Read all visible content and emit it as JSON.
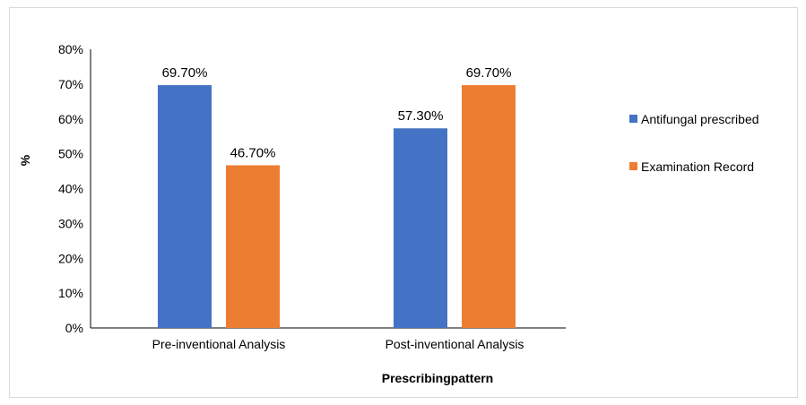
{
  "chart_data": {
    "type": "bar",
    "title": "",
    "categories": [
      "Pre-inventional Analysis",
      "Post-inventional Analysis"
    ],
    "series": [
      {
        "name": "Antifungal prescribed",
        "values": [
          69.7,
          57.3
        ],
        "color": "#4472c4"
      },
      {
        "name": "Examination Record",
        "values": [
          46.7,
          69.7
        ],
        "color": "#ed7d31"
      }
    ],
    "data_labels": [
      [
        "69.70%",
        "57.30%"
      ],
      [
        "46.70%",
        "69.70%"
      ]
    ],
    "xlabel": "Prescribingpattern",
    "ylabel": "%",
    "ylim": [
      0,
      80
    ],
    "yticks": [
      0,
      10,
      20,
      30,
      40,
      50,
      60,
      70,
      80
    ],
    "ytick_labels": [
      "0%",
      "10%",
      "20%",
      "30%",
      "40%",
      "50%",
      "60%",
      "70%",
      "80%"
    ],
    "grid": false,
    "legend_position": "right"
  }
}
